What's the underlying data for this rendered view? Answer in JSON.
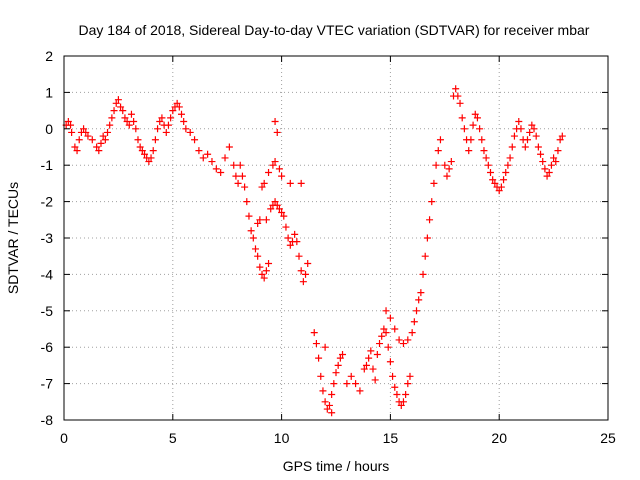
{
  "chart_data": {
    "type": "scatter",
    "title": "Day 184 of 2018, Sidereal Day-to-day VTEC variation (SDTVAR) for receiver mbar",
    "xlabel": "GPS time / hours",
    "ylabel": "SDTVAR / TECUs",
    "xlim": [
      0,
      25
    ],
    "ylim": [
      -8,
      2
    ],
    "xticks": [
      0,
      5,
      10,
      15,
      20,
      25
    ],
    "yticks": [
      -8,
      -7,
      -6,
      -5,
      -4,
      -3,
      -2,
      -1,
      0,
      1,
      2
    ],
    "grid": true,
    "marker": "plus",
    "color": "#ff0000",
    "series": [
      {
        "name": "SDTVAR",
        "points": [
          [
            0.1,
            0.1
          ],
          [
            0.2,
            0.2
          ],
          [
            0.3,
            0.1
          ],
          [
            0.35,
            -0.1
          ],
          [
            0.5,
            -0.5
          ],
          [
            0.6,
            -0.6
          ],
          [
            0.7,
            -0.3
          ],
          [
            0.8,
            -0.1
          ],
          [
            0.9,
            0.0
          ],
          [
            1.0,
            -0.1
          ],
          [
            1.1,
            -0.2
          ],
          [
            1.3,
            -0.3
          ],
          [
            1.5,
            -0.5
          ],
          [
            1.6,
            -0.6
          ],
          [
            1.7,
            -0.4
          ],
          [
            1.8,
            -0.2
          ],
          [
            1.9,
            -0.3
          ],
          [
            2.0,
            -0.1
          ],
          [
            2.1,
            0.1
          ],
          [
            2.2,
            0.3
          ],
          [
            2.3,
            0.5
          ],
          [
            2.4,
            0.7
          ],
          [
            2.5,
            0.8
          ],
          [
            2.6,
            0.6
          ],
          [
            2.7,
            0.5
          ],
          [
            2.8,
            0.3
          ],
          [
            2.9,
            0.2
          ],
          [
            3.0,
            0.1
          ],
          [
            3.1,
            0.4
          ],
          [
            3.2,
            0.2
          ],
          [
            3.3,
            0.0
          ],
          [
            3.4,
            -0.3
          ],
          [
            3.5,
            -0.5
          ],
          [
            3.6,
            -0.6
          ],
          [
            3.7,
            -0.7
          ],
          [
            3.8,
            -0.8
          ],
          [
            3.9,
            -0.9
          ],
          [
            4.0,
            -0.8
          ],
          [
            4.1,
            -0.6
          ],
          [
            4.2,
            -0.3
          ],
          [
            4.3,
            0.0
          ],
          [
            4.4,
            0.2
          ],
          [
            4.5,
            0.3
          ],
          [
            4.6,
            0.1
          ],
          [
            4.7,
            -0.1
          ],
          [
            4.8,
            0.1
          ],
          [
            4.9,
            0.3
          ],
          [
            5.0,
            0.5
          ],
          [
            5.1,
            0.6
          ],
          [
            5.2,
            0.7
          ],
          [
            5.3,
            0.6
          ],
          [
            5.4,
            0.4
          ],
          [
            5.5,
            0.2
          ],
          [
            5.6,
            0.0
          ],
          [
            5.8,
            -0.1
          ],
          [
            6.0,
            -0.3
          ],
          [
            6.2,
            -0.6
          ],
          [
            6.4,
            -0.8
          ],
          [
            6.6,
            -0.7
          ],
          [
            6.8,
            -0.9
          ],
          [
            7.0,
            -1.1
          ],
          [
            7.2,
            -1.2
          ],
          [
            7.4,
            -0.8
          ],
          [
            7.6,
            -0.5
          ],
          [
            7.8,
            -1.0
          ],
          [
            7.9,
            -1.3
          ],
          [
            8.0,
            -1.5
          ],
          [
            8.1,
            -1.0
          ],
          [
            8.2,
            -1.3
          ],
          [
            8.3,
            -1.6
          ],
          [
            8.4,
            -2.0
          ],
          [
            8.5,
            -2.4
          ],
          [
            8.6,
            -2.8
          ],
          [
            8.7,
            -3.0
          ],
          [
            8.8,
            -3.3
          ],
          [
            8.9,
            -3.5
          ],
          [
            9.0,
            -3.8
          ],
          [
            9.1,
            -4.0
          ],
          [
            9.2,
            -4.1
          ],
          [
            9.3,
            -3.9
          ],
          [
            9.4,
            -3.7
          ],
          [
            8.9,
            -2.6
          ],
          [
            9.0,
            -2.5
          ],
          [
            9.2,
            -1.5
          ],
          [
            9.4,
            -1.2
          ],
          [
            9.6,
            -1.0
          ],
          [
            9.7,
            -0.9
          ],
          [
            9.9,
            -1.1
          ],
          [
            10.0,
            -1.3
          ],
          [
            9.1,
            -1.6
          ],
          [
            9.3,
            -2.5
          ],
          [
            9.5,
            -2.2
          ],
          [
            9.6,
            -2.1
          ],
          [
            9.7,
            -2.0
          ],
          [
            9.8,
            -2.1
          ],
          [
            9.9,
            -2.2
          ],
          [
            10.0,
            -2.3
          ],
          [
            10.1,
            -2.4
          ],
          [
            10.2,
            -2.7
          ],
          [
            10.3,
            -3.0
          ],
          [
            10.4,
            -3.2
          ],
          [
            10.5,
            -3.1
          ],
          [
            10.6,
            -2.9
          ],
          [
            10.7,
            -3.1
          ],
          [
            10.8,
            -3.5
          ],
          [
            10.9,
            -3.9
          ],
          [
            11.0,
            -4.2
          ],
          [
            11.1,
            -4.0
          ],
          [
            11.2,
            -3.7
          ],
          [
            9.7,
            0.2
          ],
          [
            9.8,
            -0.1
          ],
          [
            10.4,
            -1.5
          ],
          [
            10.9,
            -1.5
          ],
          [
            11.5,
            -5.6
          ],
          [
            11.6,
            -5.9
          ],
          [
            11.7,
            -6.3
          ],
          [
            11.8,
            -6.8
          ],
          [
            11.9,
            -7.2
          ],
          [
            12.0,
            -7.5
          ],
          [
            12.1,
            -7.7
          ],
          [
            12.2,
            -7.6
          ],
          [
            12.3,
            -7.3
          ],
          [
            12.4,
            -7.0
          ],
          [
            12.5,
            -6.7
          ],
          [
            12.6,
            -6.5
          ],
          [
            12.7,
            -6.3
          ],
          [
            12.8,
            -6.2
          ],
          [
            12.0,
            -6.0
          ],
          [
            12.3,
            -7.8
          ],
          [
            13.0,
            -7.0
          ],
          [
            13.2,
            -6.8
          ],
          [
            13.4,
            -7.0
          ],
          [
            13.6,
            -7.2
          ],
          [
            13.8,
            -6.6
          ],
          [
            13.9,
            -6.5
          ],
          [
            14.0,
            -6.3
          ],
          [
            14.1,
            -6.1
          ],
          [
            14.2,
            -6.6
          ],
          [
            14.3,
            -6.9
          ],
          [
            14.4,
            -6.2
          ],
          [
            14.5,
            -5.9
          ],
          [
            14.6,
            -5.7
          ],
          [
            14.7,
            -5.5
          ],
          [
            14.8,
            -5.6
          ],
          [
            14.9,
            -6.0
          ],
          [
            15.0,
            -6.4
          ],
          [
            15.1,
            -6.8
          ],
          [
            15.2,
            -7.1
          ],
          [
            15.3,
            -7.3
          ],
          [
            15.4,
            -7.5
          ],
          [
            15.5,
            -7.6
          ],
          [
            15.6,
            -7.5
          ],
          [
            15.7,
            -7.3
          ],
          [
            15.8,
            -7.0
          ],
          [
            15.9,
            -6.8
          ],
          [
            14.8,
            -5.0
          ],
          [
            15.0,
            -5.2
          ],
          [
            15.2,
            -5.5
          ],
          [
            15.4,
            -5.8
          ],
          [
            15.6,
            -5.9
          ],
          [
            15.8,
            -5.8
          ],
          [
            16.0,
            -5.6
          ],
          [
            16.1,
            -5.3
          ],
          [
            16.2,
            -5.0
          ],
          [
            16.3,
            -4.7
          ],
          [
            16.4,
            -4.5
          ],
          [
            16.5,
            -4.0
          ],
          [
            16.6,
            -3.5
          ],
          [
            16.7,
            -3.0
          ],
          [
            16.8,
            -2.5
          ],
          [
            16.9,
            -2.0
          ],
          [
            17.0,
            -1.5
          ],
          [
            17.1,
            -1.0
          ],
          [
            17.2,
            -0.6
          ],
          [
            17.3,
            -0.3
          ],
          [
            17.5,
            -1.0
          ],
          [
            17.6,
            -1.3
          ],
          [
            17.7,
            -1.1
          ],
          [
            17.8,
            -0.9
          ],
          [
            17.9,
            0.9
          ],
          [
            18.0,
            1.1
          ],
          [
            18.1,
            0.9
          ],
          [
            18.2,
            0.7
          ],
          [
            18.3,
            0.3
          ],
          [
            18.4,
            0.0
          ],
          [
            18.5,
            -0.3
          ],
          [
            18.6,
            -0.6
          ],
          [
            18.7,
            -0.3
          ],
          [
            18.8,
            0.1
          ],
          [
            18.9,
            0.4
          ],
          [
            19.0,
            0.3
          ],
          [
            19.1,
            0.0
          ],
          [
            19.2,
            -0.3
          ],
          [
            19.3,
            -0.6
          ],
          [
            19.4,
            -0.8
          ],
          [
            19.5,
            -1.0
          ],
          [
            19.6,
            -1.2
          ],
          [
            19.7,
            -1.4
          ],
          [
            19.8,
            -1.5
          ],
          [
            19.9,
            -1.6
          ],
          [
            20.0,
            -1.7
          ],
          [
            20.1,
            -1.6
          ],
          [
            20.2,
            -1.4
          ],
          [
            20.3,
            -1.2
          ],
          [
            20.4,
            -1.0
          ],
          [
            20.5,
            -0.8
          ],
          [
            20.6,
            -0.5
          ],
          [
            20.7,
            -0.2
          ],
          [
            20.8,
            0.0
          ],
          [
            20.9,
            0.2
          ],
          [
            21.0,
            0.0
          ],
          [
            21.1,
            -0.3
          ],
          [
            21.2,
            -0.5
          ],
          [
            21.3,
            -0.3
          ],
          [
            21.4,
            -0.1
          ],
          [
            21.5,
            0.1
          ],
          [
            21.6,
            0.0
          ],
          [
            21.7,
            -0.2
          ],
          [
            21.8,
            -0.5
          ],
          [
            21.9,
            -0.7
          ],
          [
            22.0,
            -0.9
          ],
          [
            22.1,
            -1.1
          ],
          [
            22.2,
            -1.3
          ],
          [
            22.3,
            -1.2
          ],
          [
            22.4,
            -1.0
          ],
          [
            22.5,
            -0.8
          ],
          [
            22.6,
            -0.9
          ],
          [
            22.7,
            -0.6
          ],
          [
            22.8,
            -0.3
          ],
          [
            22.9,
            -0.2
          ]
        ]
      }
    ]
  }
}
